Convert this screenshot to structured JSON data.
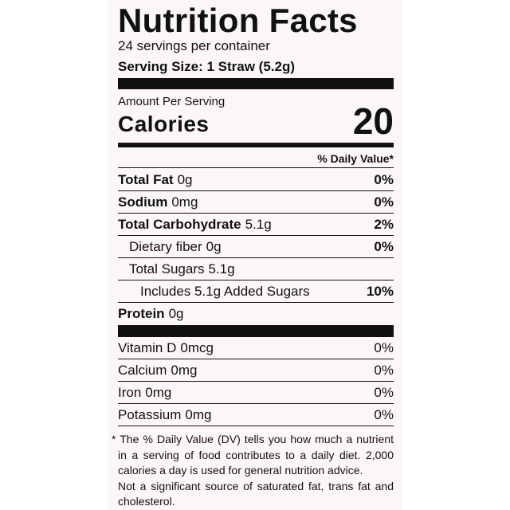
{
  "header": {
    "title": "Nutrition Facts",
    "servings": "24 servings per container",
    "serving_size": "Serving Size: 1 Straw (5.2g)"
  },
  "calories": {
    "amount_per_serving": "Amount Per Serving",
    "label": "Calories",
    "value": 20
  },
  "daily_value_header": "% Daily Value*",
  "nutrients": [
    {
      "name": "Total Fat",
      "amount": "0g",
      "dv": "0%"
    },
    {
      "name": "Sodium",
      "amount": "0mg",
      "dv": "0%"
    },
    {
      "name": "Total Carbohydrate",
      "amount": "5.1g",
      "dv": "2%"
    },
    {
      "name": "Dietary fiber",
      "amount": "0g",
      "dv": "0%"
    },
    {
      "name": "Total Sugars",
      "amount": "5.1g"
    },
    {
      "name": "Includes 5.1g Added Sugars",
      "dv": "10%"
    },
    {
      "name": "Protein",
      "amount": "0g"
    }
  ],
  "vitamins": [
    {
      "name": "Vitamin D",
      "amount": "0mcg",
      "dv": "0%"
    },
    {
      "name": "Calcium",
      "amount": "0mg",
      "dv": "0%"
    },
    {
      "name": "Iron",
      "amount": "0mg",
      "dv": "0%"
    },
    {
      "name": "Potassium",
      "amount": "0mg",
      "dv": "0%"
    }
  ],
  "footnotes": [
    "* The % Daily Value (DV) tells you how much a nutrient in a serving of food contributes to a daily diet. 2,000 calories a day is used for general nutrition advice.",
    "Not a significant source of saturated fat, trans fat and cholesterol."
  ]
}
